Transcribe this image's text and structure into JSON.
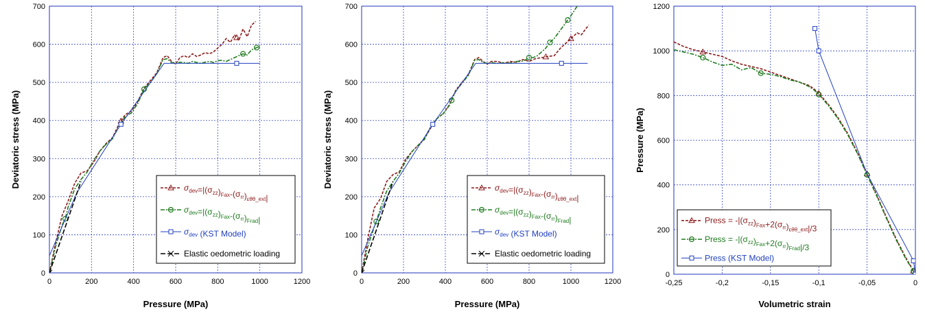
{
  "chart_data": [
    {
      "type": "line",
      "xlabel": "Pressure (MPa)",
      "ylabel": "Deviatoric stress (MPa)",
      "xlim": [
        0,
        1200
      ],
      "ylim": [
        0,
        700
      ],
      "xticks": [
        "0",
        "200",
        "400",
        "600",
        "800",
        "1000",
        "1200"
      ],
      "yticks": [
        "0",
        "100",
        "200",
        "300",
        "400",
        "500",
        "600",
        "700"
      ],
      "grid": true,
      "legend_position": "bottom-right",
      "series": [
        {
          "name": "σdev=|(σzz)Fax-(σrr)εθθ_ext|",
          "legend": {
            "main": "σ",
            "s1": "dev",
            "t1": "=|(σ",
            "s2": "zz",
            "t2": ")",
            "s3": "Fax",
            "t3": "-(σ",
            "s4": "rr",
            "t4": ")",
            "s5": "εθθ_ext",
            "t5": "|"
          },
          "color": "#8b1a1a",
          "dash": "4,2",
          "marker": "triangle",
          "x": [
            0,
            30,
            60,
            90,
            120,
            150,
            180,
            210,
            240,
            270,
            300,
            330,
            360,
            390,
            420,
            450,
            480,
            510,
            540,
            560,
            580,
            600,
            620,
            640,
            660,
            680,
            700,
            720,
            740,
            760,
            780,
            800,
            820,
            840,
            860,
            880,
            900,
            920,
            940,
            960,
            980
          ],
          "y": [
            0,
            80,
            150,
            190,
            235,
            262,
            268,
            290,
            320,
            340,
            355,
            390,
            415,
            425,
            450,
            485,
            505,
            525,
            565,
            570,
            555,
            548,
            565,
            570,
            565,
            575,
            568,
            572,
            578,
            575,
            580,
            590,
            600,
            615,
            605,
            625,
            610,
            640,
            620,
            650,
            660
          ],
          "markers_at": [
            340,
            890
          ]
        },
        {
          "name": "σdev=|(σzz)Fax-(σrr)Frad|",
          "legend": {
            "main": "σ",
            "s1": "dev",
            "t1": "=|(σ",
            "s2": "zz",
            "t2": ")",
            "s3": "Fax",
            "t3": "-(σ",
            "s4": "rr",
            "t4": ")",
            "s5": "Frad",
            "t5": "|"
          },
          "color": "#1e7a1e",
          "dash": "6,2,2,2",
          "marker": "circle",
          "x": [
            0,
            30,
            60,
            75,
            90,
            120,
            150,
            180,
            210,
            240,
            270,
            300,
            330,
            360,
            390,
            420,
            450,
            480,
            510,
            540,
            560,
            580,
            600,
            620,
            640,
            660,
            680,
            700,
            720,
            740,
            760,
            780,
            800,
            820,
            840,
            860,
            880,
            900,
            920,
            940,
            960,
            980,
            1000
          ],
          "y": [
            0,
            70,
            125,
            142,
            175,
            220,
            245,
            265,
            295,
            320,
            338,
            352,
            385,
            410,
            420,
            445,
            482,
            500,
            522,
            560,
            562,
            552,
            550,
            553,
            552,
            550,
            555,
            552,
            550,
            553,
            555,
            552,
            557,
            558,
            555,
            560,
            565,
            570,
            575,
            572,
            585,
            590,
            595
          ],
          "markers_at": [
            75,
            450,
            920,
            985
          ]
        },
        {
          "name": "σdev (KST Model)",
          "legend": {
            "main": "σ",
            "s1": "dev",
            "t1": " (KST Model)"
          },
          "color": "#1f3fbf",
          "dash": "",
          "marker": "square",
          "x": [
            0,
            130,
            340,
            545,
            1000
          ],
          "y": [
            45,
            210,
            390,
            550,
            550
          ],
          "markers_at": [
            340,
            890
          ]
        },
        {
          "name": "Elastic oedometric loading",
          "legend": {
            "main": "",
            "t1": "Elastic oedometric loading"
          },
          "color": "#000000",
          "dash": "7,3",
          "marker": "x",
          "x": [
            0,
            150
          ],
          "y": [
            0,
            240
          ],
          "markers_at": [
            0
          ]
        }
      ]
    },
    {
      "type": "line",
      "xlabel": "Pressure (MPa)",
      "ylabel": "Deviatoric stress (MPa)",
      "xlim": [
        0,
        1200
      ],
      "ylim": [
        0,
        700
      ],
      "xticks": [
        "0",
        "200",
        "400",
        "600",
        "800",
        "1000",
        "1200"
      ],
      "yticks": [
        "0",
        "100",
        "200",
        "300",
        "400",
        "500",
        "600",
        "700"
      ],
      "grid": true,
      "legend_position": "bottom-right",
      "series": [
        {
          "name": "σdev=|(σzz)Fax-(σrr)εθθ_ext|",
          "legend": {
            "main": "σ",
            "s1": "dev",
            "t1": "=|(σ",
            "s2": "zz",
            "t2": ")",
            "s3": "Fax",
            "t3": "-(σ",
            "s4": "rr",
            "t4": ")",
            "s5": "εθθ_ext",
            "t5": "|"
          },
          "color": "#8b1a1a",
          "dash": "4,2",
          "marker": "triangle",
          "x": [
            0,
            30,
            60,
            90,
            120,
            150,
            180,
            210,
            240,
            270,
            300,
            330,
            360,
            390,
            420,
            450,
            480,
            510,
            540,
            560,
            580,
            600,
            620,
            650,
            680,
            710,
            740,
            770,
            800,
            830,
            860,
            890,
            920,
            950,
            970,
            990,
            1010,
            1030,
            1050,
            1070,
            1085
          ],
          "y": [
            0,
            90,
            170,
            195,
            240,
            258,
            265,
            298,
            318,
            335,
            352,
            380,
            405,
            418,
            442,
            480,
            500,
            520,
            560,
            565,
            555,
            548,
            555,
            555,
            550,
            555,
            553,
            560,
            555,
            562,
            565,
            568,
            570,
            590,
            600,
            610,
            620,
            630,
            625,
            640,
            650
          ],
          "markers_at": [
            880,
            1000
          ]
        },
        {
          "name": "σdev=|(σzz)Fax-(σrr)Frad|",
          "legend": {
            "main": "σ",
            "s1": "dev",
            "t1": "=|(σ",
            "s2": "zz",
            "t2": ")",
            "s3": "Fax",
            "t3": "-(σ",
            "s4": "rr",
            "t4": ")",
            "s5": "Frad",
            "t5": "|"
          },
          "color": "#1e7a1e",
          "dash": "6,2,2,2",
          "marker": "circle",
          "x": [
            0,
            30,
            60,
            70,
            90,
            120,
            150,
            180,
            210,
            240,
            270,
            300,
            330,
            360,
            390,
            420,
            450,
            480,
            510,
            540,
            560,
            580,
            600,
            620,
            640,
            660,
            680,
            700,
            720,
            740,
            760,
            780,
            800,
            820,
            840,
            860,
            880,
            900,
            920,
            940,
            960,
            980,
            1000,
            1030
          ],
          "y": [
            0,
            70,
            120,
            135,
            170,
            215,
            240,
            262,
            292,
            318,
            335,
            350,
            385,
            405,
            418,
            440,
            478,
            498,
            518,
            558,
            560,
            552,
            550,
            552,
            550,
            550,
            552,
            550,
            552,
            555,
            555,
            558,
            565,
            565,
            570,
            580,
            590,
            605,
            615,
            630,
            645,
            660,
            675,
            700
          ],
          "markers_at": [
            70,
            430,
            800,
            900,
            985
          ]
        },
        {
          "name": "σdev (KST Model)",
          "legend": {
            "main": "σ",
            "s1": "dev",
            "t1": " (KST Model)"
          },
          "color": "#1f3fbf",
          "dash": "",
          "marker": "square",
          "x": [
            0,
            130,
            340,
            545,
            1080
          ],
          "y": [
            45,
            210,
            390,
            550,
            550
          ],
          "markers_at": [
            340,
            955
          ]
        },
        {
          "name": "Elastic oedometric loading",
          "legend": {
            "main": "",
            "t1": "Elastic oedometric loading"
          },
          "color": "#000000",
          "dash": "7,3",
          "marker": "x",
          "x": [
            0,
            150
          ],
          "y": [
            0,
            240
          ],
          "markers_at": [
            0
          ]
        }
      ]
    },
    {
      "type": "line",
      "xlabel": "Volumetric strain",
      "ylabel": "Pressure (MPa)",
      "xlim": [
        -0.25,
        0
      ],
      "ylim": [
        0,
        1200
      ],
      "xticks": [
        "-0,25",
        "-0,2",
        "-0,15",
        "-0,1",
        "-0,05",
        "0"
      ],
      "yticks": [
        "0",
        "200",
        "400",
        "600",
        "800",
        "1000",
        "1200"
      ],
      "grid": true,
      "legend_position": "bottom-left",
      "series": [
        {
          "name": "Press = -|(σzz)Fax+2(σrr)εθθ_ext|/3",
          "legend": {
            "main": "",
            "t1": "Press = -|(σ",
            "s1": "zz",
            "t2": ")",
            "s2": "Fax",
            "t3": "+2(σ",
            "s3": "rr",
            "t4": ")",
            "s4": "εθθ_ext",
            "t5": "|/3"
          },
          "color": "#8b1a1a",
          "dash": "4,2",
          "marker": "triangle",
          "x": [
            -0.25,
            -0.24,
            -0.23,
            -0.22,
            -0.21,
            -0.2,
            -0.19,
            -0.18,
            -0.17,
            -0.16,
            -0.15,
            -0.14,
            -0.13,
            -0.12,
            -0.11,
            -0.105,
            -0.1,
            -0.09,
            -0.08,
            -0.07,
            -0.06,
            -0.05,
            -0.04,
            -0.03,
            -0.02,
            -0.01,
            0
          ],
          "y": [
            1040,
            1020,
            1005,
            995,
            985,
            975,
            955,
            940,
            930,
            920,
            905,
            890,
            875,
            860,
            845,
            830,
            810,
            760,
            700,
            630,
            545,
            450,
            355,
            255,
            160,
            75,
            0
          ],
          "markers_at": [
            -0.22,
            -0.1,
            -0.05,
            -0.002
          ]
        },
        {
          "name": "Press = -|(σzz)Fax+2(σrr)Frad|/3",
          "legend": {
            "main": "",
            "t1": "Press = -|(σ",
            "s1": "zz",
            "t2": ")",
            "s2": "Fax",
            "t3": "+2(σ",
            "s3": "rr",
            "t4": ")",
            "s4": "Frad",
            "t5": "|/3"
          },
          "color": "#1e7a1e",
          "dash": "6,2,2,2",
          "marker": "circle",
          "x": [
            -0.25,
            -0.24,
            -0.23,
            -0.22,
            -0.21,
            -0.2,
            -0.19,
            -0.18,
            -0.17,
            -0.16,
            -0.15,
            -0.14,
            -0.13,
            -0.12,
            -0.11,
            -0.105,
            -0.1,
            -0.09,
            -0.08,
            -0.07,
            -0.06,
            -0.05,
            -0.04,
            -0.03,
            -0.02,
            -0.01,
            0
          ],
          "y": [
            1005,
            995,
            985,
            970,
            950,
            935,
            940,
            915,
            925,
            900,
            895,
            885,
            870,
            860,
            840,
            825,
            805,
            755,
            695,
            625,
            540,
            445,
            350,
            250,
            155,
            70,
            0
          ],
          "markers_at": [
            -0.22,
            -0.16,
            -0.1,
            -0.05,
            -0.002
          ]
        },
        {
          "name": "Press (KST Model)",
          "legend": {
            "main": "",
            "t1": "Press (KST Model)"
          },
          "color": "#1f3fbf",
          "dash": "",
          "marker": "square",
          "x": [
            -0.104,
            -0.1,
            -0.05,
            -0.002,
            0
          ],
          "y": [
            1100,
            1000,
            450,
            60,
            0
          ],
          "markers_at": [
            -0.104,
            -0.1,
            -0.002,
            0
          ]
        }
      ]
    }
  ]
}
